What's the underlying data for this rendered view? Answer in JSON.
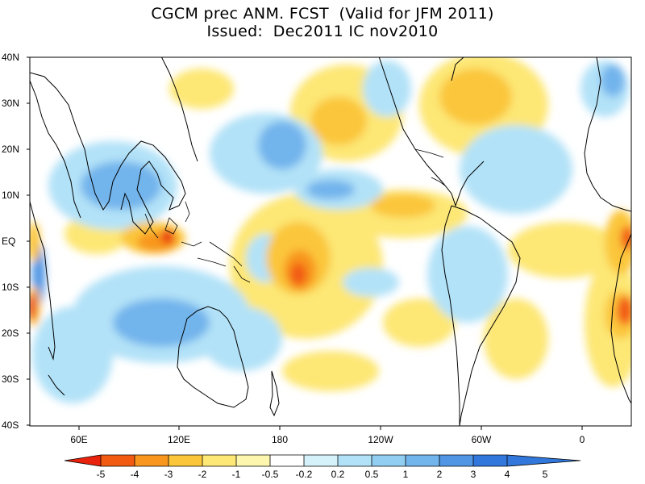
{
  "title": {
    "line1": "CGCM prec ANM. FCST  (Valid for JFM 2011)",
    "line2": "Issued:  Dec2011 IC nov2010"
  },
  "map": {
    "lat_labels": [
      "40N",
      "30N",
      "20N",
      "10N",
      "EQ",
      "10S",
      "20S",
      "30S",
      "40S"
    ],
    "lon_labels": [
      "60E",
      "120E",
      "180",
      "120W",
      "60W",
      "0"
    ]
  },
  "colorbar": {
    "labels": [
      "-5",
      "-4",
      "-3",
      "-2",
      "-1",
      "-0.5",
      "-0.2",
      "0.2",
      "0.5",
      "1",
      "2",
      "3",
      "4",
      "5"
    ],
    "colors": [
      "#e8220c",
      "#f25a12",
      "#f8961e",
      "#fbc63a",
      "#fde775",
      "#fdf6ae",
      "#ffffff",
      "#d5f2fb",
      "#b2e2f8",
      "#92cdf2",
      "#72b4ec",
      "#5196e4",
      "#3278dc"
    ],
    "low_end_color": "#e8220c",
    "high_end_color": "#3278dc"
  }
}
